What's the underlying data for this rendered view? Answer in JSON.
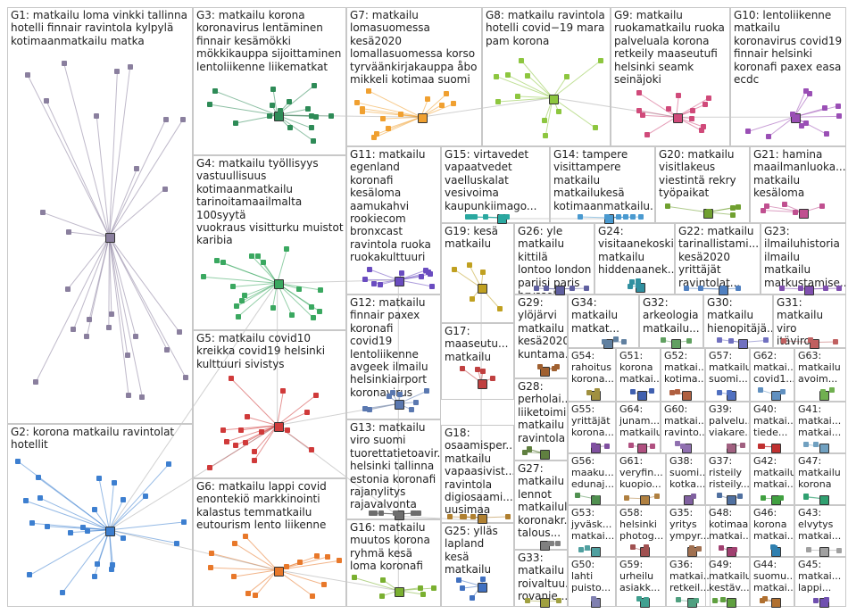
{
  "title": "",
  "groups": [
    {
      "id": "G1",
      "label": "G1: matkailu loma vinkki tallinna\nhotelli finnair ravintola kylpylä\nkotimaanmatkailu matka",
      "color": "#8a7f9e"
    },
    {
      "id": "G2",
      "label": "G2: korona matkailu ravintolat\nhotellit",
      "color": "#3d7fd0"
    },
    {
      "id": "G3",
      "label": "G3: matkailu korona\nkoronavirus lentäminen\nfinnair kesämökki\nmökkikauppa sijoittaminen\nlentoliikenne liikematkat",
      "color": "#2e8b57"
    },
    {
      "id": "G4",
      "label": "G4: matkailu työllisyys\nvastuullisuus\nkotimaanmatkailu\ntarinoitamaailmalta 100syytä\nvuokraus visitturku muistot\nkaribia",
      "color": "#3aa860"
    },
    {
      "id": "G5",
      "label": "G5: matkailu covid10\nkreikka covid19 helsinki\nkulttuuri sivistys",
      "color": "#d03a3a"
    },
    {
      "id": "G6",
      "label": "G6: matkailu lappi covid\nenontekiö markkinointi\nkalastus temmatkailu\neutourism lento liikenne",
      "color": "#e8782a"
    },
    {
      "id": "G7",
      "label": "G7: matkailu\nlomasuomessa\nkesä2020\nlomallasuomessa korso\ntyrväänkirjakauppa åbo\nmikkeli kotimaa suomi",
      "color": "#f0a030"
    },
    {
      "id": "G8",
      "label": "G8: matkailu ravintola\nhotelli covid−19 mara\npam korona",
      "color": "#8dc63f"
    },
    {
      "id": "G9",
      "label": "G9: matkailu\nruokamatkailu ruoka\npalveluala korona\nretkeily maaseutufi\nhelsinki seamk\nseinäjoki",
      "color": "#d04a7a"
    },
    {
      "id": "G10",
      "label": "G10: lentoliikenne\nmatkailu\nkoronavirus covid19\nfinnair helsinki\nkoronafi paxex easa\necdc",
      "color": "#9a4fb5"
    },
    {
      "id": "G11",
      "label": "G11: matkailu\negenland\nkoronafi\nkesäloma\naamukahvi\nrookiecom\nbronxcast\nravintola ruoka\nruokakulttuuri",
      "color": "#6a4cc0"
    },
    {
      "id": "G12",
      "label": "G12: matkailu\nfinnair paxex\nkoronafi covid19\nlentoliikenne\navgeek ilmailu\nhelsinkiairport\nkoronavirus",
      "color": "#5a78b0"
    },
    {
      "id": "G13",
      "label": "G13: matkailu\nviro suomi\ntuorettatietoavir...\nhelsinki tallinna\nestonia koronafi\nrajanylitys\nrajavalvonta",
      "color": "#6d6d6d"
    },
    {
      "id": "G14",
      "label": "G14: tampere\nvisittampere\nmatkailu\nmatkailukesä\nkotimaanmatkailu...",
      "color": "#4a9ad0"
    },
    {
      "id": "G15",
      "label": "G15: virtavedet\nvapaatvedet\nvaelluskalat\nvesivoima\nkaupunkiimago...",
      "color": "#2aa8a0"
    },
    {
      "id": "G16",
      "label": "G16: matkailu\nmuutos korona\nryhmä kesä\nloma koronafi",
      "color": "#7ab030"
    },
    {
      "id": "G17",
      "label": "G17:\nmaaseutu...\nmatkailu",
      "color": "#c04040"
    },
    {
      "id": "G18",
      "label": "G18:\nosaamisper...\nmatkailu\nvapaasivist...\nravintola\ndigiosaami...\nuusimaa",
      "color": "#b08030"
    },
    {
      "id": "G19",
      "label": "G19: kesä\nmatkailu",
      "color": "#c0a020"
    },
    {
      "id": "G20",
      "label": "G20: matkailu\nvisitlakeus\nviestintä rekry\ntyöpaikat",
      "color": "#70a030"
    },
    {
      "id": "G21",
      "label": "G21: hamina\nmaailmanluoka...\nmatkailu\nkesäloma",
      "color": "#c05090"
    },
    {
      "id": "G22",
      "label": "G22: matkailu\ntarinallistami...\nkesä2020\nyrittäjät\nravintolat...",
      "color": "#5080c0"
    },
    {
      "id": "G23",
      "label": "G23:\nilmailuhistoria\nilmailu\nmatkailu\nmatkustamise...",
      "color": "#8050b0"
    },
    {
      "id": "G24",
      "label": "G24:\nvisitaanekoski\nmatkailu\nhiddenaanek...",
      "color": "#3090a0"
    },
    {
      "id": "G25",
      "label": "G25: ylläs\nlapland kesä\nmatkailu",
      "color": "#4070c0"
    },
    {
      "id": "G26",
      "label": "G26: yle\nmatkailu kittilä\nlontoo london\npariisi paris\nbryssel zurich...",
      "color": "#6060a0"
    },
    {
      "id": "G27",
      "label": "G27:\nmatkailu\nlennot\nmatkailul...\nkoronakr...\ntalous...",
      "color": "#808080"
    },
    {
      "id": "G28",
      "label": "G28:\nperholai...\nliiketoimi...\nmatkailu\nravintola",
      "color": "#608040"
    },
    {
      "id": "G29",
      "label": "G29:\nylöjärvi\nmatkailu\nkesä2020\nkuntama...",
      "color": "#a06030"
    },
    {
      "id": "G30",
      "label": "G30:\nmatkailu\nhienopitäjä...",
      "color": "#7070c0"
    },
    {
      "id": "G31",
      "label": "G31:\nmatkailu\nviro itäviro...",
      "color": "#c06060"
    },
    {
      "id": "G32",
      "label": "G32:\narkeologia\nmatkailu...",
      "color": "#60a060"
    },
    {
      "id": "G33",
      "label": "G33:\nmatkailu\nroivaltuu...\nrovanie...",
      "color": "#a0a040"
    },
    {
      "id": "G34",
      "label": "G34:\nmatkailu\nmatkat...",
      "color": "#6080a0"
    },
    {
      "id": "G35",
      "label": "G35:\nyritys\nympyr...",
      "color": "#a07050"
    },
    {
      "id": "G36",
      "label": "G36:\nmatkai...\nretkeil...",
      "color": "#50a080"
    },
    {
      "id": "G37",
      "label": "G37:\nristeily\nristeily...",
      "color": "#5070a0"
    },
    {
      "id": "G38",
      "label": "G38:\nsuomi...\nkotka...",
      "color": "#8060a0"
    },
    {
      "id": "G39",
      "label": "G39:\npalvelu...\nviakare...",
      "color": "#a06080"
    },
    {
      "id": "G40",
      "label": "G40:\nmatkai...\ntiede...",
      "color": "#c03030"
    },
    {
      "id": "G41",
      "label": "G41:\nmatkai...\nmatkai...",
      "color": "#70a0c0"
    },
    {
      "id": "G42",
      "label": "G42:\nmatkailu\nmatkai...",
      "color": "#40a040"
    },
    {
      "id": "G43",
      "label": "G43:\nelvytys\nmatkai...",
      "color": "#a0a0a0"
    },
    {
      "id": "G44",
      "label": "G44:\nsuomu...\nmatkai...",
      "color": "#b07030"
    },
    {
      "id": "G45",
      "label": "G45:\nmatkai...\nlappi...",
      "color": "#7050b0"
    },
    {
      "id": "G46",
      "label": "G46:\nkorona\nmatkai...",
      "color": "#3080b0"
    },
    {
      "id": "G47",
      "label": "G47:\nmatkailu\nkorona",
      "color": "#30a070"
    },
    {
      "id": "G48",
      "label": "G48:\nkotimaa\nmatkai...",
      "color": "#a04070"
    },
    {
      "id": "G49",
      "label": "G49:\nmatkailu\nkestäv...",
      "color": "#60a040"
    },
    {
      "id": "G50",
      "label": "G50:\nlahti\npuisto...",
      "color": "#8080b0"
    },
    {
      "id": "G51",
      "label": "G51:\nkorona\nmatkai...",
      "color": "#4060b0"
    },
    {
      "id": "G52",
      "label": "G52:\nmatkai...\nkotima...",
      "color": "#b06040"
    },
    {
      "id": "G53",
      "label": "G53:\njyväsk...\nmatkai...",
      "color": "#50a0a0"
    },
    {
      "id": "G54",
      "label": "G54:\nrahoitus\nkorona...",
      "color": "#a09040"
    },
    {
      "id": "G55",
      "label": "G55:\nyrittäjät\nkorona...",
      "color": "#8050a0"
    },
    {
      "id": "G56",
      "label": "G56:\nmaaku...\nedunaj...",
      "color": "#509050"
    },
    {
      "id": "G57",
      "label": "G57:\nmatkailu\nsuomi...",
      "color": "#5070c0"
    },
    {
      "id": "G58",
      "label": "G58:\nhelsinki\nphotog...",
      "color": "#a05050"
    },
    {
      "id": "G59",
      "label": "G59:\nurheilu\nasiakk...",
      "color": "#40a090"
    },
    {
      "id": "G60",
      "label": "G60:\nmatkai...\nravinto...",
      "color": "#9070b0"
    },
    {
      "id": "G61",
      "label": "G61:\nveryfin...\nkuopio...",
      "color": "#b08040"
    },
    {
      "id": "G62",
      "label": "G62:\nmatkai...\ncovid1...",
      "color": "#6090c0"
    },
    {
      "id": "G63",
      "label": "G63:\nmatkailu\navoim...",
      "color": "#70b050"
    },
    {
      "id": "G64",
      "label": "G64:\njunam...\nmatkailu",
      "color": "#b05080"
    }
  ]
}
